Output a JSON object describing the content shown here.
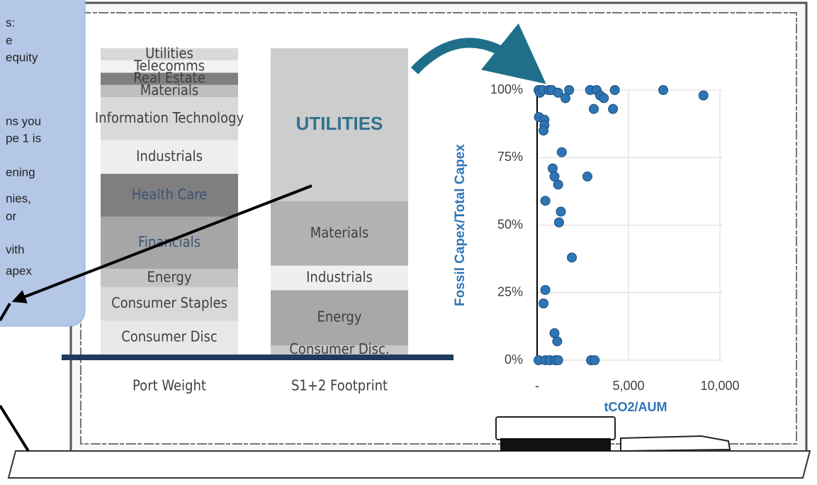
{
  "callout": {
    "lines": [
      "s:",
      "e",
      "equity",
      "ns you",
      "pe 1 is",
      "ening",
      "nies,",
      "or",
      "vith",
      "apex"
    ]
  },
  "chart_data": [
    {
      "type": "stacked-column",
      "categories": [
        "Port Weight",
        "S1+2 Footprint"
      ],
      "stacks": [
        {
          "labels": [
            "Utilities",
            "Telecomms",
            "Real Estate",
            "Materials",
            "Information Technology",
            "Industrials",
            "Health Care",
            "Financials",
            "Energy",
            "Consumer Staples",
            "Consumer Disc"
          ],
          "values": [
            4,
            4,
            4,
            4,
            14,
            11,
            14,
            17,
            6,
            11,
            11
          ],
          "colors": [
            "#d9d9d9",
            "#f2f2f2",
            "#7f7f7f",
            "#bfbfbf",
            "#d9d9d9",
            "#eeeeee",
            "#7f7f7f",
            "#a6a6a6",
            "#c4c4c4",
            "#d9d9d9",
            "#e8e8e8"
          ],
          "label_colors": [
            "#404040",
            "#404040",
            "#404040",
            "#404040",
            "#404040",
            "#404040",
            "#3b5574",
            "#3b5574",
            "#404040",
            "#404040",
            "#404040"
          ]
        },
        {
          "labels": [
            "UTILITIES",
            "Materials",
            "Industrials",
            "Energy",
            "Consumer Disc."
          ],
          "values": [
            50,
            21,
            8,
            18,
            3
          ],
          "colors": [
            "#cdcdcd",
            "#b2b2b2",
            "#efefef",
            "#a8a8a8",
            "#c8c8c8"
          ],
          "label_colors": [
            "#31718f",
            "#404040",
            "#404040",
            "#404040",
            "#404040"
          ]
        }
      ]
    },
    {
      "type": "scatter",
      "xlabel": "tCO2/AUM",
      "ylabel": "Fossil Capex/Total Capex",
      "color": "#2e75b6",
      "xlim": [
        0,
        10000
      ],
      "ylim": [
        0,
        100
      ],
      "xticks": [
        {
          "value": 0,
          "label": "-"
        },
        {
          "value": 5000,
          "label": "5,000"
        },
        {
          "value": 10000,
          "label": "10,000"
        }
      ],
      "yticks": [
        {
          "value": 0,
          "label": "0%"
        },
        {
          "value": 25,
          "label": "25%"
        },
        {
          "value": 50,
          "label": "50%"
        },
        {
          "value": 75,
          "label": "75%"
        },
        {
          "value": 100,
          "label": "100%"
        }
      ],
      "grid": true,
      "x": [
        80,
        150,
        300,
        650,
        800,
        1150,
        1550,
        1750,
        2900,
        3250,
        3450,
        3650,
        4250,
        6900,
        9100,
        3100,
        4150,
        100,
        400,
        400,
        350,
        1350,
        850,
        950,
        1150,
        450,
        2750,
        1300,
        1200,
        1900,
        450,
        350,
        950,
        1100,
        80,
        450,
        700,
        1000,
        1150,
        2950,
        3150
      ],
      "y": [
        100,
        99,
        100,
        100,
        100,
        99,
        97,
        100,
        100,
        100,
        98,
        97,
        100,
        100,
        98,
        93,
        93,
        90,
        89,
        87,
        85,
        77,
        71,
        68,
        65,
        59,
        68,
        55,
        51,
        38,
        26,
        21,
        10,
        7,
        0,
        0,
        0,
        0,
        0,
        0,
        0
      ]
    }
  ]
}
